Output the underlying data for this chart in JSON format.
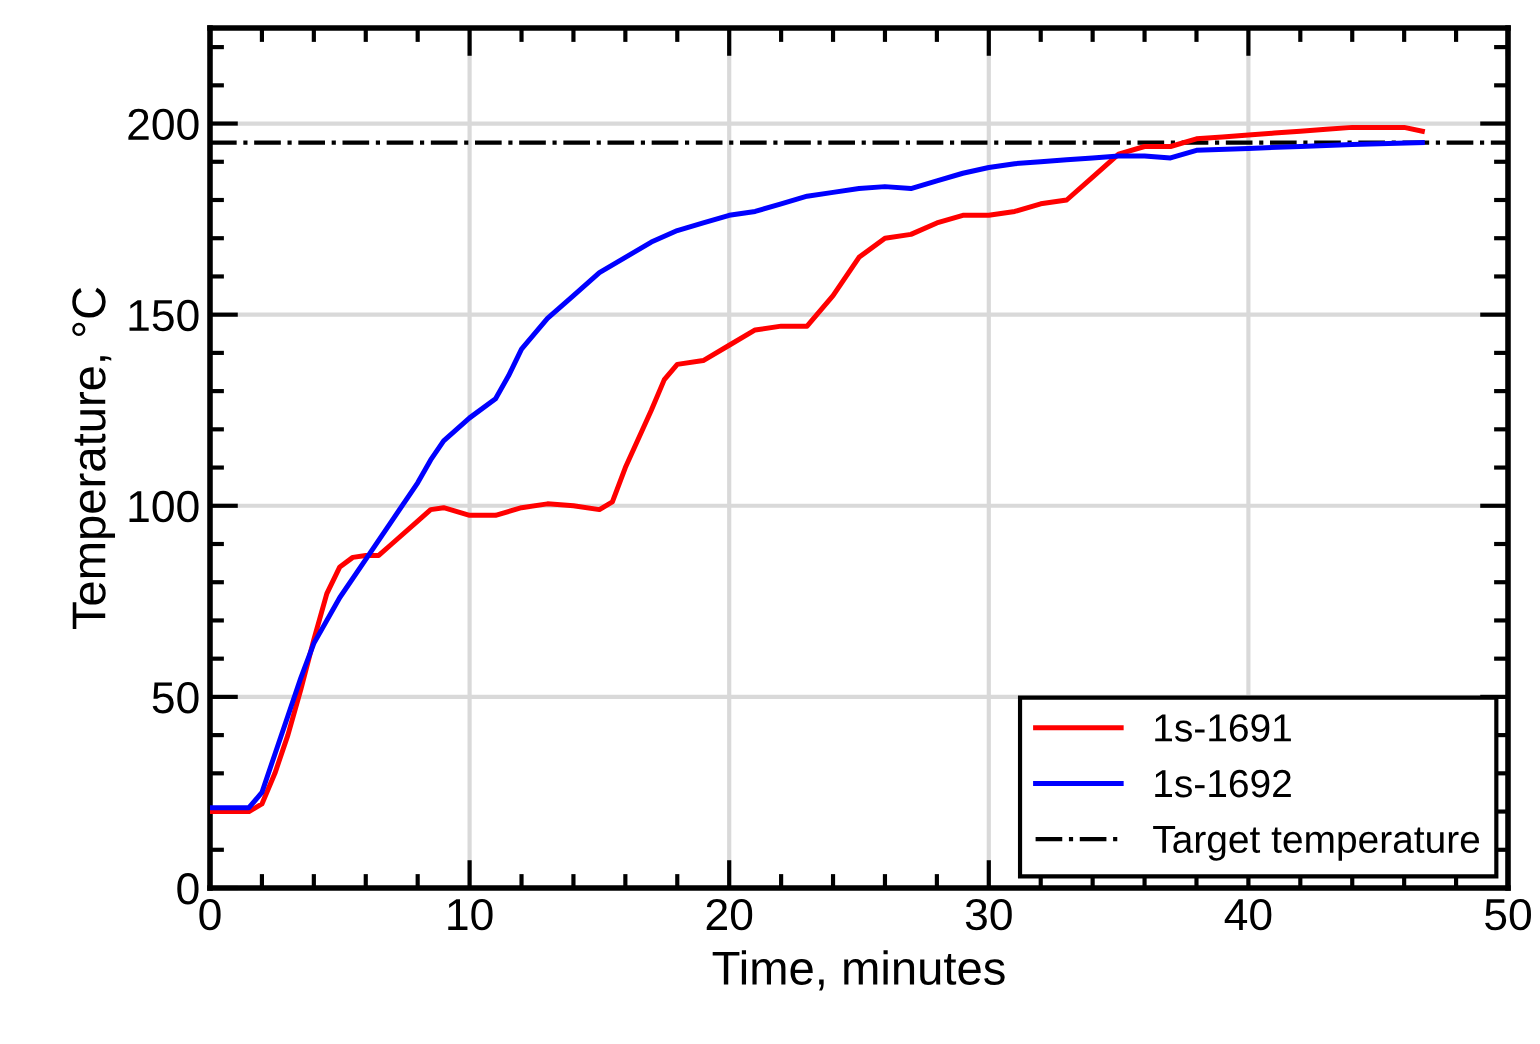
{
  "chart_data": {
    "type": "line",
    "xlabel": "Time, minutes",
    "ylabel": "Temperature, °C",
    "xlim": [
      0,
      50
    ],
    "ylim": [
      0,
      225
    ],
    "xticks": [
      0,
      10,
      20,
      30,
      40,
      50
    ],
    "yticks": [
      0,
      50,
      100,
      150,
      200
    ],
    "grid": true,
    "legend": "bottom right",
    "line_style": "solid",
    "marker": "none",
    "series": [
      {
        "name": "1s-1691",
        "color": "#ff0000",
        "x": [
          0,
          1.5,
          2,
          2.5,
          3,
          3.5,
          4,
          4.5,
          5,
          5.5,
          6,
          6.5,
          7,
          8,
          8.5,
          9,
          10,
          11,
          12,
          13,
          14,
          15,
          15.5,
          16,
          17,
          17.5,
          18,
          19,
          20,
          21,
          22,
          23,
          24,
          25,
          26,
          27,
          28,
          29,
          30,
          31,
          32,
          33,
          34,
          35,
          36,
          37,
          38,
          39,
          40,
          41,
          42,
          43,
          44,
          45,
          46,
          46.7
        ],
        "values": [
          20,
          20,
          22,
          30,
          40,
          52,
          65,
          77,
          84,
          86.5,
          87,
          87,
          90,
          96,
          99,
          99.5,
          97.5,
          97.5,
          99.5,
          100.5,
          100,
          99,
          101,
          110,
          125,
          133,
          137,
          138,
          142,
          146,
          147,
          147,
          155,
          165,
          170,
          171,
          174,
          176,
          176,
          177,
          179,
          180,
          186,
          192,
          194,
          194,
          196,
          196.5,
          197,
          197.5,
          198,
          198.5,
          199,
          199,
          199,
          198
        ]
      },
      {
        "name": "1s-1692",
        "color": "#0000ff",
        "x": [
          0,
          1.5,
          2,
          2.5,
          3,
          3.5,
          4,
          5,
          6,
          7,
          8,
          8.5,
          9,
          10,
          11,
          11.5,
          12,
          13,
          14,
          15,
          16,
          17,
          18,
          19,
          20,
          21,
          22,
          23,
          24,
          25,
          26,
          27,
          28,
          29,
          30,
          31,
          32,
          33,
          34,
          35,
          36,
          37,
          38,
          40,
          42,
          44,
          46.7
        ],
        "values": [
          21,
          21,
          25,
          35,
          45,
          55,
          64,
          76,
          86,
          96,
          106,
          112,
          117,
          123,
          128,
          134,
          141,
          149,
          155,
          161,
          165,
          169,
          172,
          174,
          176,
          177,
          179,
          181,
          182,
          183,
          183.5,
          183,
          185,
          187,
          188.5,
          189.5,
          190,
          190.5,
          191,
          191.5,
          191.5,
          191,
          193,
          193.5,
          194,
          194.5,
          195
        ]
      }
    ],
    "ref_lines": [
      {
        "axis": "y",
        "value": 195,
        "label": "Target temperature",
        "color": "#000000",
        "line_style": "dashdot"
      }
    ]
  }
}
